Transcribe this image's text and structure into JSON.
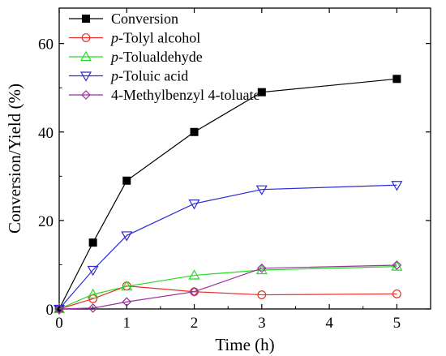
{
  "chart_data": {
    "type": "line",
    "xlabel": "Time (h)",
    "ylabel": "Conversion/Yield (%)",
    "xlim": [
      0,
      5.5
    ],
    "ylim": [
      0,
      68
    ],
    "xticks": [
      0,
      1,
      2,
      3,
      4,
      5
    ],
    "yticks": [
      0,
      20,
      40,
      60
    ],
    "grid": false,
    "legend_position": "top-left",
    "series": [
      {
        "name": "Conversion",
        "name_prefix": "",
        "name_rest": "Conversion",
        "color": "#000000",
        "marker": "filled-square",
        "x": [
          0,
          0.5,
          1,
          2,
          3,
          5
        ],
        "y": [
          0,
          15,
          29,
          40,
          49,
          52
        ]
      },
      {
        "name": "p-Tolyl alcohol",
        "name_prefix": "p",
        "name_rest": "-Tolyl alcohol",
        "color": "#e8302a",
        "marker": "open-circle",
        "x": [
          0,
          0.5,
          1,
          2,
          3,
          5
        ],
        "y": [
          0,
          2.3,
          5.2,
          3.9,
          3.2,
          3.4
        ]
      },
      {
        "name": "p-Tolualdehyde",
        "name_prefix": "p",
        "name_rest": "-Tolualdehyde",
        "color": "#22dd22",
        "marker": "open-triangle-up",
        "x": [
          0,
          0.5,
          1,
          2,
          3,
          5
        ],
        "y": [
          0,
          3.3,
          5.1,
          7.6,
          8.8,
          9.6
        ]
      },
      {
        "name": "p-Toluic acid",
        "name_prefix": "p",
        "name_rest": "-Toluic acid",
        "color": "#2b2bd6",
        "marker": "open-triangle-down",
        "x": [
          0,
          0.5,
          1,
          2,
          3,
          5
        ],
        "y": [
          0,
          8.8,
          16.6,
          23.8,
          27,
          28
        ]
      },
      {
        "name": "4-Methylbenzyl 4-toluate",
        "name_prefix": "",
        "name_rest": "4-Methylbenzyl 4-toluate",
        "color": "#9b2f9b",
        "marker": "open-diamond",
        "x": [
          0,
          0.5,
          1,
          2,
          3,
          5
        ],
        "y": [
          0,
          0.2,
          1.6,
          3.9,
          9.2,
          9.9
        ]
      }
    ]
  }
}
